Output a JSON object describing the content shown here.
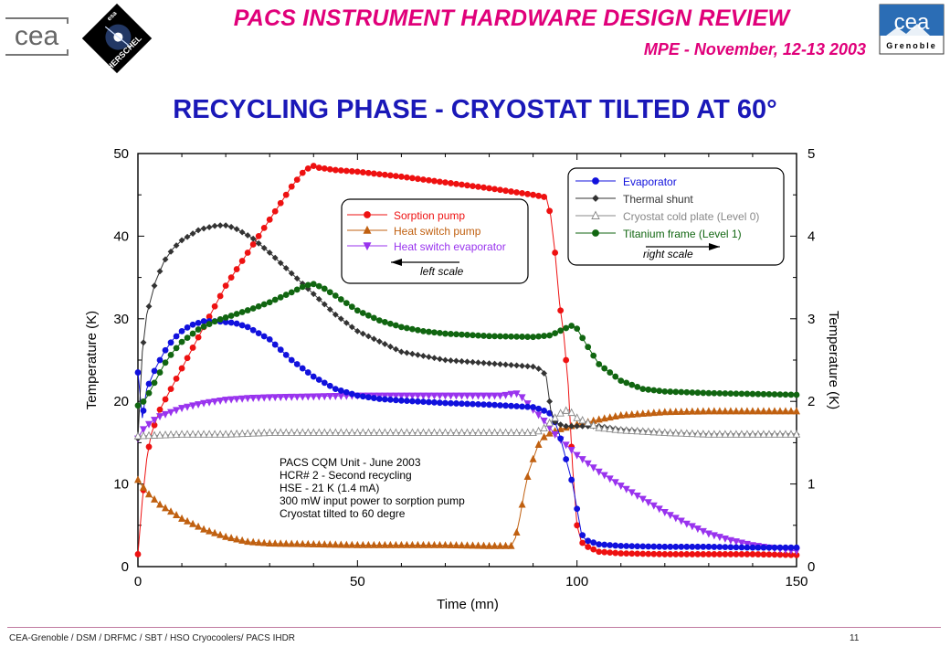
{
  "header": {
    "title": "PACS INSTRUMENT HARDWARE DESIGN REVIEW",
    "subtitle": "MPE - November, 12-13 2003",
    "logo_left_text": "cea",
    "logo_herschel_text": "HERSCHEL",
    "logo_herschel_small": "esa",
    "logo_right_text": "cea",
    "logo_right_sub": "Grenoble"
  },
  "slide_title": "RECYCLING PHASE - CRYOSTAT TILTED AT 60°",
  "footer": {
    "text": "CEA-Grenoble / DSM / DRFMC / SBT / HSO Cryocoolers/ PACS IHDR",
    "page": "11"
  },
  "colors": {
    "header_magenta": "#e0007a",
    "title_blue": "#1a18b8",
    "sorption_pump": "#ee1111",
    "heat_switch_pump": "#c06010",
    "heat_switch_evaporator": "#9933ee",
    "evaporator": "#1111dd",
    "thermal_shunt": "#333333",
    "cold_plate": "#888888",
    "titanium_frame": "#116611"
  },
  "chart_data": {
    "type": "scatter",
    "xlabel": "Time (mn)",
    "ylabel": "Temperature (K)",
    "y2label": "Temperature (K)",
    "xlim": [
      0,
      150
    ],
    "ylim": [
      0,
      50
    ],
    "y2lim": [
      0,
      5
    ],
    "x_ticks": [
      "0",
      "50",
      "100",
      "150"
    ],
    "y_ticks": [
      "0",
      "10",
      "20",
      "30",
      "40",
      "50"
    ],
    "y2_ticks": [
      "0",
      "1",
      "2",
      "3",
      "4",
      "5"
    ],
    "grid": false,
    "legend_left": {
      "placement": "top-center",
      "entries": [
        "Sorption pump",
        "Heat switch pump",
        "Heat switch evaporator"
      ],
      "arrow_label": "left scale"
    },
    "legend_right": {
      "placement": "top-right",
      "entries": [
        "Evaporator",
        "Thermal shunt",
        "Cryostat cold plate (Level 0)",
        "Titanium frame (Level 1)"
      ],
      "arrow_label": "right scale"
    },
    "annotation": [
      "PACS CQM Unit - June 2003",
      "HCR# 2 - Second recycling",
      "HSE - 21 K (1.4 mA)",
      "300 mW input power to sorption pump",
      "Cryostat tilted to 60 degre"
    ],
    "series": [
      {
        "name": "Sorption pump",
        "axis": "left",
        "marker": "circle",
        "color": "#ee1111",
        "x": [
          0,
          1,
          2,
          3,
          5,
          8,
          12,
          16,
          20,
          25,
          30,
          35,
          38,
          40,
          41,
          45,
          50,
          60,
          70,
          80,
          90,
          93,
          94,
          95,
          96,
          97,
          98,
          99,
          100,
          101,
          102,
          105,
          110,
          120,
          130,
          140,
          150
        ],
        "y": [
          1.5,
          8,
          13,
          16,
          19,
          22,
          26,
          30,
          34,
          38,
          42,
          46,
          48,
          48.5,
          48.3,
          48,
          47.8,
          47.2,
          46.5,
          45.8,
          45,
          44.7,
          42.5,
          38,
          32,
          28,
          22,
          12,
          5,
          3,
          2.5,
          1.8,
          1.6,
          1.5,
          1.5,
          1.5,
          1.4
        ]
      },
      {
        "name": "Heat switch pump",
        "axis": "left",
        "marker": "triangle-up",
        "color": "#c06010",
        "x": [
          0,
          2,
          5,
          10,
          15,
          20,
          25,
          30,
          40,
          50,
          60,
          70,
          80,
          85,
          86,
          87,
          88,
          89,
          90,
          91,
          92,
          94,
          96,
          98,
          100,
          105,
          110,
          120,
          130,
          140,
          150
        ],
        "y": [
          10.5,
          9,
          7.5,
          5.8,
          4.5,
          3.6,
          3,
          2.8,
          2.7,
          2.6,
          2.6,
          2.6,
          2.5,
          2.5,
          3.5,
          6,
          9,
          11.5,
          13,
          14.5,
          15.5,
          16.2,
          16.6,
          16.9,
          17.2,
          17.8,
          18.3,
          18.7,
          18.8,
          18.8,
          18.8
        ]
      },
      {
        "name": "Heat switch evaporator",
        "axis": "left",
        "marker": "triangle-down",
        "color": "#9933ee",
        "x": [
          0,
          1,
          3,
          5,
          10,
          15,
          20,
          25,
          30,
          40,
          50,
          60,
          70,
          80,
          83,
          85,
          86,
          87,
          88,
          90,
          92,
          95,
          100,
          105,
          110,
          115,
          120,
          125,
          130,
          135,
          140,
          145,
          150
        ],
        "y": [
          15.5,
          16.5,
          17.5,
          18.2,
          19.2,
          19.8,
          20.2,
          20.4,
          20.5,
          20.6,
          20.7,
          20.7,
          20.7,
          20.7,
          20.7,
          20.9,
          21,
          20.8,
          20.2,
          19,
          18,
          16,
          13.5,
          11.5,
          9.8,
          8.2,
          6.6,
          5.2,
          4,
          3.2,
          2.6,
          2.2,
          1.9
        ]
      },
      {
        "name": "Evaporator",
        "axis": "right",
        "marker": "circle",
        "color": "#1111dd",
        "x": [
          0,
          1,
          2,
          4,
          6,
          8,
          10,
          12,
          15,
          18,
          20,
          22,
          25,
          30,
          35,
          40,
          45,
          50,
          55,
          60,
          70,
          80,
          90,
          92,
          94,
          95,
          96,
          97,
          98,
          99,
          100,
          101,
          102,
          105,
          110,
          120,
          130,
          140,
          150
        ],
        "y": [
          2.35,
          1.8,
          2.15,
          2.4,
          2.6,
          2.75,
          2.85,
          2.92,
          2.97,
          2.97,
          2.96,
          2.95,
          2.9,
          2.75,
          2.5,
          2.3,
          2.15,
          2.07,
          2.03,
          2.01,
          1.98,
          1.96,
          1.93,
          1.9,
          1.85,
          1.75,
          1.6,
          1.4,
          1.2,
          1.0,
          0.7,
          0.4,
          0.32,
          0.27,
          0.25,
          0.24,
          0.24,
          0.23,
          0.23
        ]
      },
      {
        "name": "Thermal shunt",
        "axis": "right",
        "marker": "diamond",
        "color": "#333333",
        "x": [
          0,
          1,
          2,
          3,
          4,
          6,
          8,
          10,
          14,
          18,
          20,
          22,
          26,
          30,
          35,
          40,
          45,
          50,
          60,
          70,
          80,
          90,
          92,
          93,
          94,
          95,
          97,
          100,
          105,
          110,
          120,
          130,
          140,
          150
        ],
        "y": [
          1.55,
          2.6,
          3.05,
          3.25,
          3.45,
          3.7,
          3.85,
          3.95,
          4.08,
          4.13,
          4.13,
          4.1,
          3.98,
          3.8,
          3.55,
          3.3,
          3.05,
          2.85,
          2.6,
          2.5,
          2.46,
          2.42,
          2.38,
          2.3,
          1.9,
          1.75,
          1.7,
          1.7,
          1.7,
          1.66,
          1.62,
          1.6,
          1.6,
          1.6
        ]
      },
      {
        "name": "Cryostat cold plate (Level 0)",
        "axis": "right",
        "marker": "triangle-up-open",
        "color": "#888888",
        "x": [
          0,
          10,
          20,
          30,
          40,
          50,
          60,
          70,
          80,
          90,
          92,
          94,
          96,
          98,
          100,
          105,
          110,
          120,
          130,
          140,
          150
        ],
        "y": [
          1.58,
          1.6,
          1.6,
          1.62,
          1.62,
          1.62,
          1.62,
          1.62,
          1.62,
          1.62,
          1.65,
          1.75,
          1.85,
          1.9,
          1.8,
          1.68,
          1.65,
          1.62,
          1.6,
          1.6,
          1.6
        ]
      },
      {
        "name": "Titanium frame (Level 1)",
        "axis": "right",
        "marker": "circle",
        "color": "#116611",
        "x": [
          0,
          1,
          2,
          4,
          6,
          8,
          10,
          14,
          18,
          22,
          26,
          30,
          35,
          38,
          40,
          42,
          45,
          50,
          55,
          60,
          65,
          70,
          80,
          90,
          94,
          96,
          98,
          99,
          100,
          102,
          105,
          110,
          115,
          120,
          130,
          140,
          150
        ],
        "y": [
          1.95,
          1.98,
          2.05,
          2.25,
          2.45,
          2.6,
          2.72,
          2.88,
          2.98,
          3.05,
          3.12,
          3.2,
          3.32,
          3.4,
          3.42,
          3.38,
          3.28,
          3.1,
          2.98,
          2.9,
          2.85,
          2.82,
          2.79,
          2.78,
          2.8,
          2.85,
          2.9,
          2.92,
          2.88,
          2.7,
          2.45,
          2.25,
          2.15,
          2.12,
          2.1,
          2.09,
          2.08
        ]
      }
    ]
  }
}
